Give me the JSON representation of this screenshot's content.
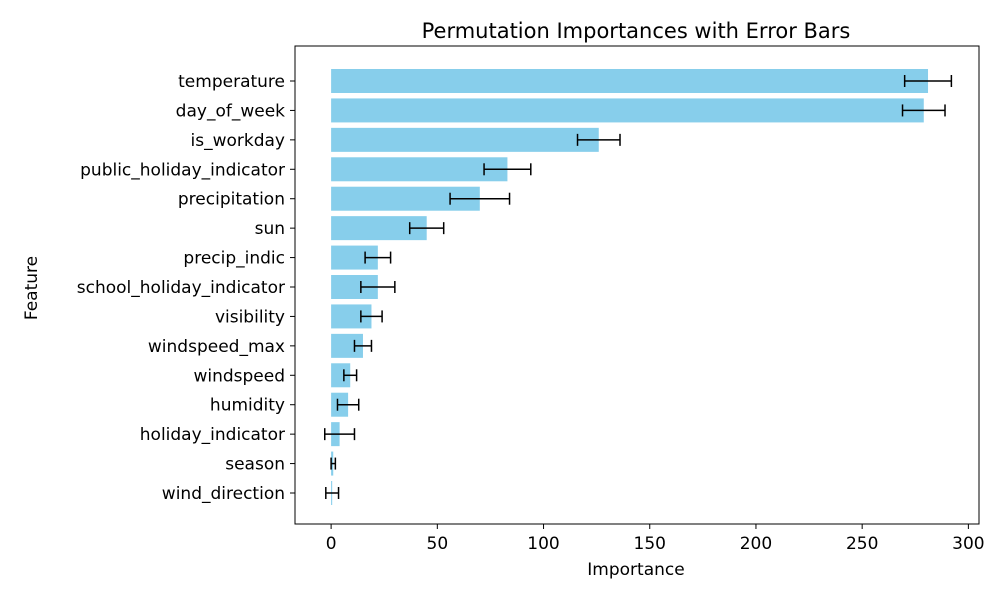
{
  "chart_data": {
    "type": "bar",
    "orientation": "horizontal",
    "title": "Permutation Importances with Error Bars",
    "xlabel": "Importance",
    "ylabel": "Feature",
    "xlim": [
      -17,
      305
    ],
    "xticks": [
      0,
      50,
      100,
      150,
      200,
      250,
      300
    ],
    "grid": false,
    "bar_color": "#87CEEB",
    "error_color": "#000000",
    "categories": [
      "temperature",
      "day_of_week",
      "is_workday",
      "public_holiday_indicator",
      "precipitation",
      "sun",
      "precip_indic",
      "school_holiday_indicator",
      "visibility",
      "windspeed_max",
      "windspeed",
      "humidity",
      "holiday_indicator",
      "season",
      "wind_direction"
    ],
    "values": [
      281,
      279,
      126,
      83,
      70,
      45,
      22,
      22,
      19,
      15,
      9,
      8,
      4,
      1,
      0.5
    ],
    "errors": [
      11,
      10,
      10,
      11,
      14,
      8,
      6,
      8,
      5,
      4,
      3,
      5,
      7,
      1,
      3
    ]
  }
}
